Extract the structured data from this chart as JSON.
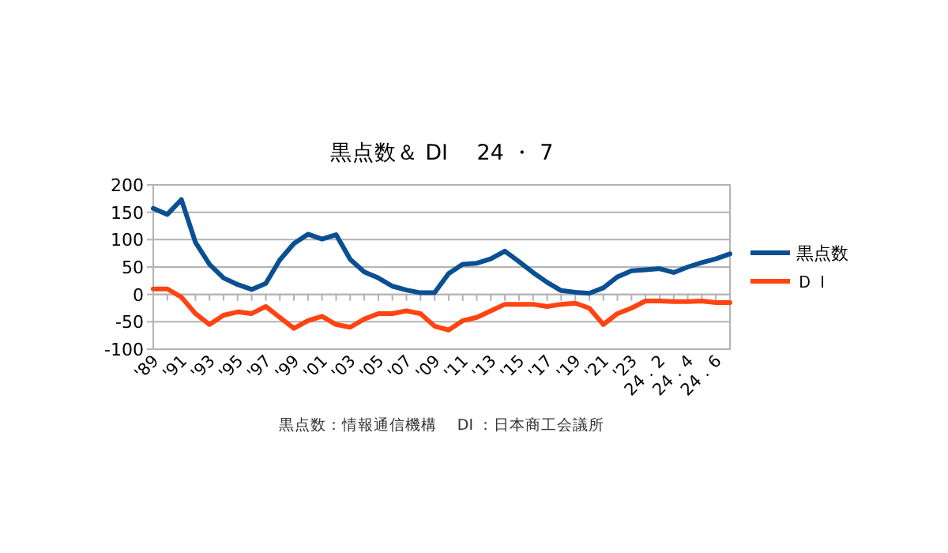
{
  "chart_data": {
    "type": "line",
    "title": "黒点数＆ DI　 24 ・ 7",
    "categories": [
      "'89",
      null,
      "'91",
      null,
      "'93",
      null,
      "'95",
      null,
      "'97",
      null,
      "'99",
      null,
      "'01",
      null,
      "'03",
      null,
      "'05",
      null,
      "'07",
      null,
      "'09",
      null,
      "'11",
      null,
      "'13",
      null,
      "'15",
      null,
      "'17",
      null,
      "'19",
      null,
      "'21",
      null,
      "'23",
      null,
      "24．2",
      null,
      "24．4",
      null,
      "24．6",
      null
    ],
    "series": [
      {
        "name": "黒点数",
        "color": "#0a4f92",
        "values": [
          157,
          146,
          173,
          95,
          55,
          30,
          18,
          9,
          20,
          63,
          93,
          110,
          101,
          109,
          64,
          41,
          30,
          15,
          8,
          3,
          3,
          38,
          55,
          57,
          65,
          79,
          60,
          40,
          22,
          7,
          4,
          2,
          12,
          32,
          43,
          45,
          47,
          40,
          50,
          58,
          65,
          74
        ]
      },
      {
        "name": "ＤＩ",
        "color": "#ff4411",
        "values": [
          10,
          10,
          -5,
          -35,
          -55,
          -38,
          -32,
          -35,
          -22,
          -42,
          -62,
          -48,
          -40,
          -55,
          -60,
          -45,
          -35,
          -35,
          -30,
          -35,
          -58,
          -65,
          -48,
          -42,
          -30,
          -18,
          -18,
          -18,
          -22,
          -18,
          -16,
          -25,
          -55,
          -35,
          -25,
          -12,
          -12,
          -13,
          -13,
          -12,
          -15,
          -15
        ]
      }
    ],
    "ylim": [
      -100,
      200
    ],
    "yticks": [
      -100,
      -50,
      0,
      50,
      100,
      150,
      200
    ],
    "grid": "y",
    "legend": "right",
    "annotations": [
      "黒点数：情報通信機構　 DI ：日本商工会議所"
    ]
  }
}
